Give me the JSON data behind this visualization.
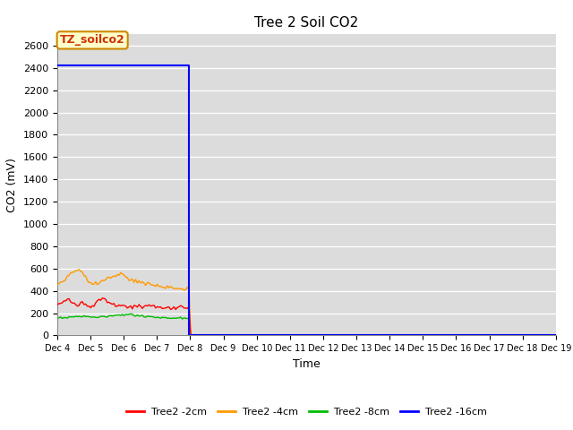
{
  "title": "Tree 2 Soil CO2",
  "ylabel": "CO2 (mV)",
  "xlabel": "Time",
  "ylim": [
    0,
    2700
  ],
  "yticks": [
    0,
    200,
    400,
    600,
    800,
    1000,
    1200,
    1400,
    1600,
    1800,
    2000,
    2200,
    2400,
    2600
  ],
  "bg_color": "#dcdcdc",
  "annotation_text": "TZ_soilco2",
  "annotation_bg": "#ffffcc",
  "annotation_border": "#cc8800",
  "legend_labels": [
    "Tree2 -2cm",
    "Tree2 -4cm",
    "Tree2 -8cm",
    "Tree2 -16cm"
  ],
  "legend_colors": [
    "#ff0000",
    "#ff9900",
    "#00bb00",
    "#0000ff"
  ],
  "x_tick_labels": [
    "Dec 4",
    "Dec 5",
    "Dec 6",
    "Dec 7",
    "Dec 8",
    "Dec 9",
    "Dec 10",
    "Dec 11",
    "Dec 12",
    "Dec 13",
    "Dec 14",
    "Dec 15",
    "Dec 16",
    "Dec 17",
    "Dec 18",
    "Dec 19"
  ],
  "num_days": 15,
  "active_days": 4,
  "blue_active_value": 2425,
  "blue_drop_value": 3,
  "red_values": [
    275,
    290,
    315,
    325,
    305,
    285,
    260,
    300,
    290,
    280,
    265,
    275,
    315,
    345,
    330,
    305,
    295,
    270,
    260,
    275,
    265,
    255,
    250,
    265,
    258,
    252,
    262,
    268,
    262,
    252,
    258,
    252,
    248,
    243,
    248,
    252,
    258,
    252,
    248,
    243
  ],
  "orange_values": [
    460,
    475,
    490,
    535,
    550,
    570,
    585,
    575,
    545,
    505,
    475,
    455,
    465,
    485,
    495,
    515,
    525,
    535,
    545,
    555,
    535,
    515,
    505,
    495,
    485,
    475,
    465,
    460,
    455,
    450,
    445,
    440,
    435,
    430,
    428,
    425,
    422,
    420,
    418,
    415
  ],
  "green_values": [
    155,
    158,
    161,
    163,
    166,
    169,
    171,
    173,
    171,
    169,
    166,
    163,
    161,
    166,
    169,
    171,
    173,
    176,
    179,
    181,
    183,
    184,
    183,
    181,
    179,
    176,
    174,
    171,
    169,
    166,
    164,
    161,
    159,
    158,
    157,
    156,
    155,
    154,
    153,
    152
  ]
}
